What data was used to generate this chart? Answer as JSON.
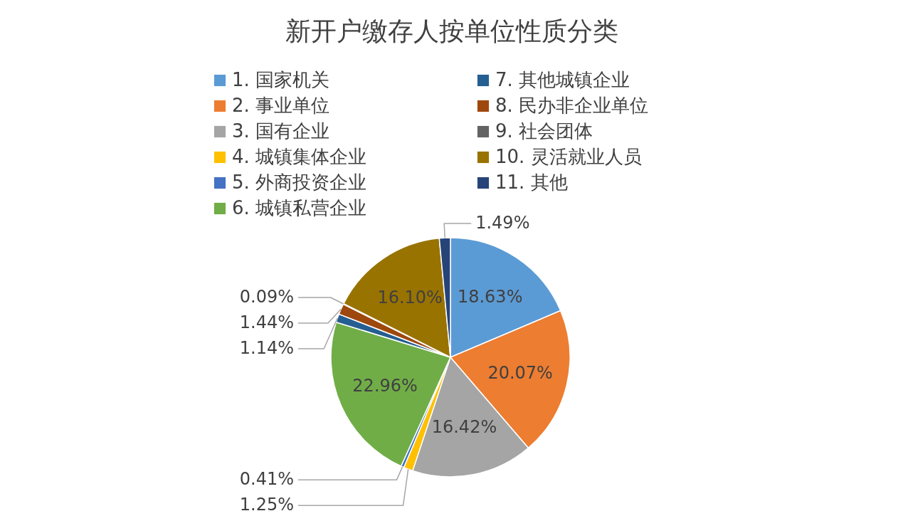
{
  "chart_data": {
    "type": "pie",
    "title": "新开户缴存人按单位性质分类",
    "categories": [
      "1. 国家机关",
      "2. 事业单位",
      "3. 国有企业",
      "4. 城镇集体企业",
      "5. 外商投资企业",
      "6. 城镇私营企业",
      "7. 其他城镇企业",
      "8. 民办非企业单位",
      "9. 社会团体",
      "10. 灵活就业人员",
      "11. 其他"
    ],
    "values": [
      18.63,
      20.07,
      16.42,
      1.25,
      0.41,
      22.96,
      1.14,
      1.44,
      0.09,
      16.1,
      1.49
    ],
    "value_labels": [
      "18.63%",
      "20.07%",
      "16.42%",
      "1.25%",
      "0.41%",
      "22.96%",
      "1.14%",
      "1.44%",
      "0.09%",
      "16.10%",
      "1.49%"
    ],
    "colors": [
      "#5b9bd5",
      "#ed7d31",
      "#a5a5a5",
      "#ffc000",
      "#4472c4",
      "#70ad47",
      "#255e91",
      "#9e480e",
      "#636363",
      "#997300",
      "#264478"
    ],
    "legend": "top"
  }
}
